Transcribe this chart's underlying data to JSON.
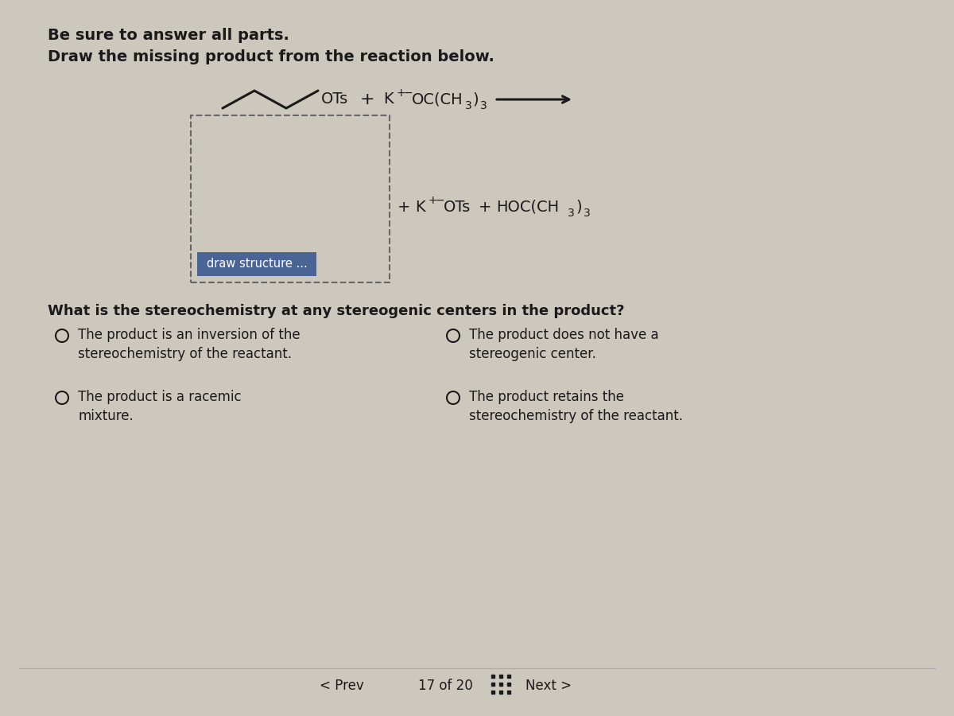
{
  "bg_color": "#cdc8be",
  "draw_btn_color": "#4a6595",
  "draw_btn_text_color": "#ffffff",
  "text_color": "#1a1a1a",
  "title": "Be sure to answer all parts.",
  "subtitle": "Draw the missing product from the reaction below.",
  "draw_structure_label": "draw structure ...",
  "question_text": "What is the stereochemistry at any stereogenic centers in the product?",
  "opt1_line1": "The product is an inversion of the",
  "opt1_line2": "stereochemistry of the reactant.",
  "opt2_line1": "The product is a racemic",
  "opt2_line2": "mixture.",
  "opt3_line1": "The product does not have a",
  "opt3_line2": "stereogenic center.",
  "opt4_line1": "The product retains the",
  "opt4_line2": "stereochemistry of the reactant.",
  "nav_prev": "< Prev",
  "nav_mid": "17 of 20",
  "nav_next": "Next >"
}
